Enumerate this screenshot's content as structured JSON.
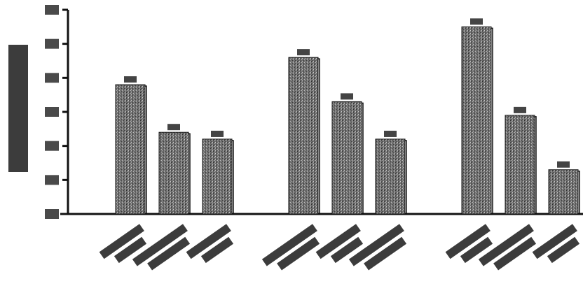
{
  "chart_data": {
    "type": "bar",
    "title": "",
    "xlabel": "",
    "ylabel": "",
    "ylim": [
      0,
      6
    ],
    "ticks": [
      0,
      1,
      2,
      3,
      4,
      5,
      6
    ],
    "grid": false,
    "legend": "none",
    "groups": [
      {
        "values": [
          3.8,
          2.4,
          2.2
        ]
      },
      {
        "values": [
          4.6,
          3.3,
          2.2
        ]
      },
      {
        "values": [
          5.5,
          2.9,
          1.3
        ]
      }
    ]
  },
  "colors": {
    "bar": "#6f6f6f",
    "axis": "#111111",
    "background": "#ffffff"
  }
}
